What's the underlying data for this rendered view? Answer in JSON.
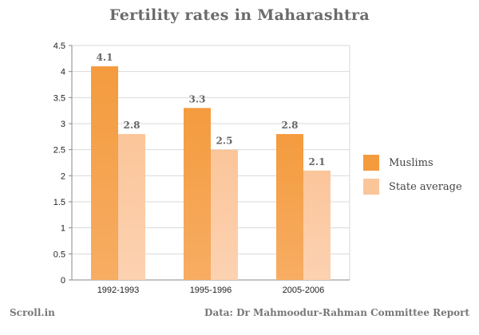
{
  "chart_data": {
    "type": "bar",
    "title": "Fertility rates in Maharashtra",
    "categories": [
      "1992-1993",
      "1995-1996",
      "2005-2006"
    ],
    "series": [
      {
        "name": "Muslims",
        "values": [
          4.1,
          3.3,
          2.8
        ],
        "color_top": "#f49b3e",
        "color_bottom": "#f7ad63",
        "labels": [
          "4.1",
          "3.3",
          "2.8"
        ]
      },
      {
        "name": "State average",
        "values": [
          2.8,
          2.5,
          2.1
        ],
        "color_top": "#fbc59a",
        "color_bottom": "#fcd2b1",
        "labels": [
          "2.8",
          "2.5",
          "2.1"
        ]
      }
    ],
    "ylim": [
      0,
      4.5
    ],
    "yticks": [
      "0",
      "0.5",
      "1",
      "1.5",
      "2",
      "2.5",
      "3",
      "3.5",
      "4",
      "4.5"
    ],
    "grid": true,
    "legend": "right"
  },
  "footer": {
    "source_site": "Scroll.in",
    "data_source": "Data: Dr Mahmoodur-Rahman Committee Report"
  }
}
